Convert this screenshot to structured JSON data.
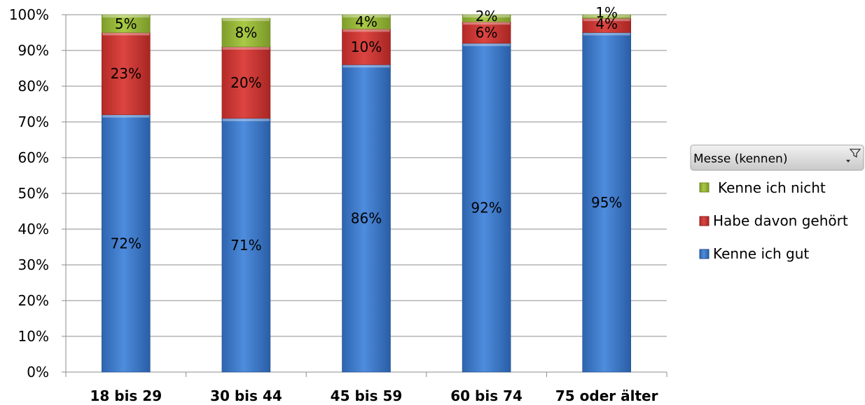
{
  "chart_data": {
    "type": "bar",
    "stacked": true,
    "categories": [
      "18 bis 29",
      "30 bis 44",
      "45 bis 59",
      "60 bis 74",
      "75 oder älter"
    ],
    "series": [
      {
        "name": "Kenne ich gut",
        "values": [
          72,
          71,
          86,
          92,
          95
        ],
        "labels": [
          "72%",
          "71%",
          "86%",
          "92%",
          "95%"
        ],
        "color": "#4A86D8"
      },
      {
        "name": "Habe davon gehört",
        "values": [
          23,
          20,
          10,
          6,
          4
        ],
        "labels": [
          "23%",
          "20%",
          "10%",
          "6%",
          "4%"
        ],
        "color": "#D83A36"
      },
      {
        "name": "Kenne ich nicht",
        "values": [
          5,
          8,
          4,
          2,
          1
        ],
        "labels": [
          "5%",
          "8%",
          "4%",
          "2%",
          "1%"
        ],
        "color": "#9BBB3A"
      }
    ],
    "y_ticks": [
      "0%",
      "10%",
      "20%",
      "30%",
      "40%",
      "50%",
      "60%",
      "70%",
      "80%",
      "90%",
      "100%"
    ],
    "ylim": [
      0,
      100
    ],
    "grid": true,
    "legend": {
      "position": "right",
      "title": "Messe (kennen)",
      "filter_icon": "filter-icon",
      "items": [
        "Kenne ich nicht",
        "Habe davon gehört",
        "Kenne ich gut"
      ]
    }
  }
}
